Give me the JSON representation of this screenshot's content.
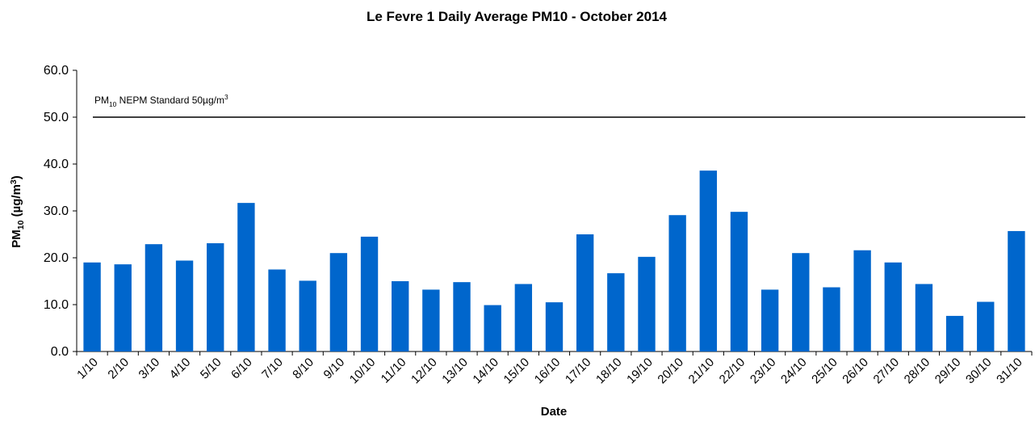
{
  "chart_data": {
    "type": "bar",
    "title": "Le Fevre 1 Daily Average PM10 - October 2014",
    "x_label": "Date",
    "y_label_parts": [
      "PM",
      "10",
      " (µg/m",
      "3",
      ")"
    ],
    "categories": [
      "1/10",
      "2/10",
      "3/10",
      "4/10",
      "5/10",
      "6/10",
      "7/10",
      "8/10",
      "9/10",
      "10/10",
      "11/10",
      "12/10",
      "13/10",
      "14/10",
      "15/10",
      "16/10",
      "17/10",
      "18/10",
      "19/10",
      "20/10",
      "21/10",
      "22/10",
      "23/10",
      "24/10",
      "25/10",
      "26/10",
      "27/10",
      "28/10",
      "29/10",
      "30/10",
      "31/10"
    ],
    "values": [
      19.0,
      18.6,
      22.9,
      19.4,
      23.1,
      31.7,
      17.5,
      15.1,
      21.0,
      24.5,
      15.0,
      13.2,
      14.8,
      9.9,
      14.4,
      10.5,
      25.0,
      16.7,
      20.2,
      29.1,
      38.6,
      29.8,
      13.2,
      21.0,
      13.7,
      21.6,
      19.0,
      14.4,
      7.6,
      10.6,
      25.7
    ],
    "color": "#0066cc",
    "ylim": [
      0,
      60
    ],
    "yticks": [
      {
        "value": 0,
        "label": "0.0"
      },
      {
        "value": 10,
        "label": "10.0"
      },
      {
        "value": 20,
        "label": "20.0"
      },
      {
        "value": 30,
        "label": "30.0"
      },
      {
        "value": 40,
        "label": "40.0"
      },
      {
        "value": 50,
        "label": "50.0"
      },
      {
        "value": 60,
        "label": "60.0"
      }
    ],
    "standard": {
      "value": 50,
      "label_parts": [
        "PM",
        "10",
        " NEPM Standard 50µg/m",
        "3"
      ]
    }
  }
}
